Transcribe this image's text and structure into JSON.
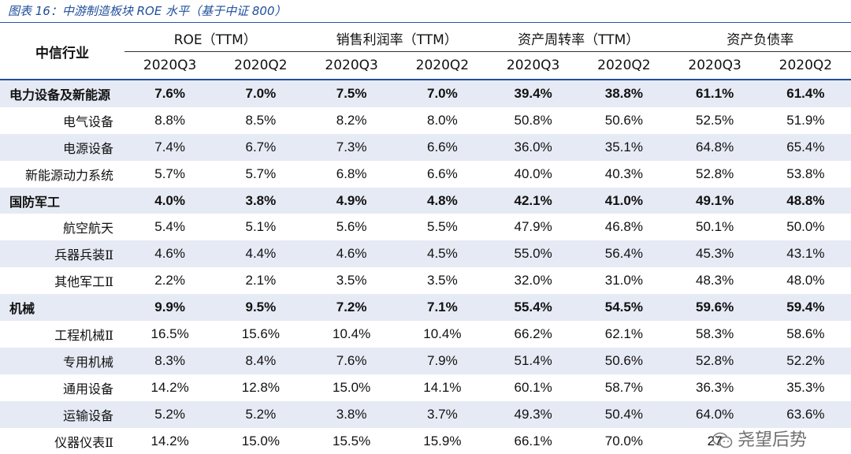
{
  "caption": "图表 16：中游制造板块 ROE 水平（基于中证 800）",
  "header": {
    "industry_label": "中信行业",
    "groups": [
      "ROE（TTM）",
      "销售利润率（TTM）",
      "资产周转率（TTM）",
      "资产负债率"
    ],
    "periods": [
      "2020Q3",
      "2020Q2",
      "2020Q3",
      "2020Q2",
      "2020Q3",
      "2020Q2",
      "2020Q3",
      "2020Q2"
    ]
  },
  "rows": [
    {
      "name": "电力设备及新能源",
      "values": [
        "7.6%",
        "7.0%",
        "7.5%",
        "7.0%",
        "39.4%",
        "38.8%",
        "61.1%",
        "61.4%"
      ]
    },
    {
      "name": "电气设备",
      "values": [
        "8.8%",
        "8.5%",
        "8.2%",
        "8.0%",
        "50.8%",
        "50.6%",
        "52.5%",
        "51.9%"
      ]
    },
    {
      "name": "电源设备",
      "values": [
        "7.4%",
        "6.7%",
        "7.3%",
        "6.6%",
        "36.0%",
        "35.1%",
        "64.8%",
        "65.4%"
      ]
    },
    {
      "name": "新能源动力系统",
      "values": [
        "5.7%",
        "5.7%",
        "6.8%",
        "6.6%",
        "40.0%",
        "40.3%",
        "52.8%",
        "53.8%"
      ]
    },
    {
      "name": "国防军工",
      "values": [
        "4.0%",
        "3.8%",
        "4.9%",
        "4.8%",
        "42.1%",
        "41.0%",
        "49.1%",
        "48.8%"
      ]
    },
    {
      "name": "航空航天",
      "values": [
        "5.4%",
        "5.1%",
        "5.6%",
        "5.5%",
        "47.9%",
        "46.8%",
        "50.1%",
        "50.0%"
      ]
    },
    {
      "name": "兵器兵装Ⅱ",
      "values": [
        "4.6%",
        "4.4%",
        "4.6%",
        "4.5%",
        "55.0%",
        "56.4%",
        "45.3%",
        "43.1%"
      ]
    },
    {
      "name": "其他军工Ⅱ",
      "values": [
        "2.2%",
        "2.1%",
        "3.5%",
        "3.5%",
        "32.0%",
        "31.0%",
        "48.3%",
        "48.0%"
      ]
    },
    {
      "name": "机械",
      "values": [
        "9.9%",
        "9.5%",
        "7.2%",
        "7.1%",
        "55.4%",
        "54.5%",
        "59.6%",
        "59.4%"
      ]
    },
    {
      "name": "工程机械Ⅱ",
      "values": [
        "16.5%",
        "15.6%",
        "10.4%",
        "10.4%",
        "66.2%",
        "62.1%",
        "58.3%",
        "58.6%"
      ]
    },
    {
      "name": "专用机械",
      "values": [
        "8.3%",
        "8.4%",
        "7.6%",
        "7.9%",
        "51.4%",
        "50.6%",
        "52.8%",
        "52.2%"
      ]
    },
    {
      "name": "通用设备",
      "values": [
        "14.2%",
        "12.8%",
        "15.0%",
        "14.1%",
        "60.1%",
        "58.7%",
        "36.3%",
        "35.3%"
      ]
    },
    {
      "name": "运输设备",
      "values": [
        "5.2%",
        "5.2%",
        "3.8%",
        "3.7%",
        "49.3%",
        "50.4%",
        "64.0%",
        "63.6%"
      ]
    },
    {
      "name": "仪器仪表Ⅱ",
      "values": [
        "14.2%",
        "15.0%",
        "15.5%",
        "15.9%",
        "66.1%",
        "70.0%",
        "27",
        ""
      ]
    }
  ],
  "watermark": "尧望后势"
}
